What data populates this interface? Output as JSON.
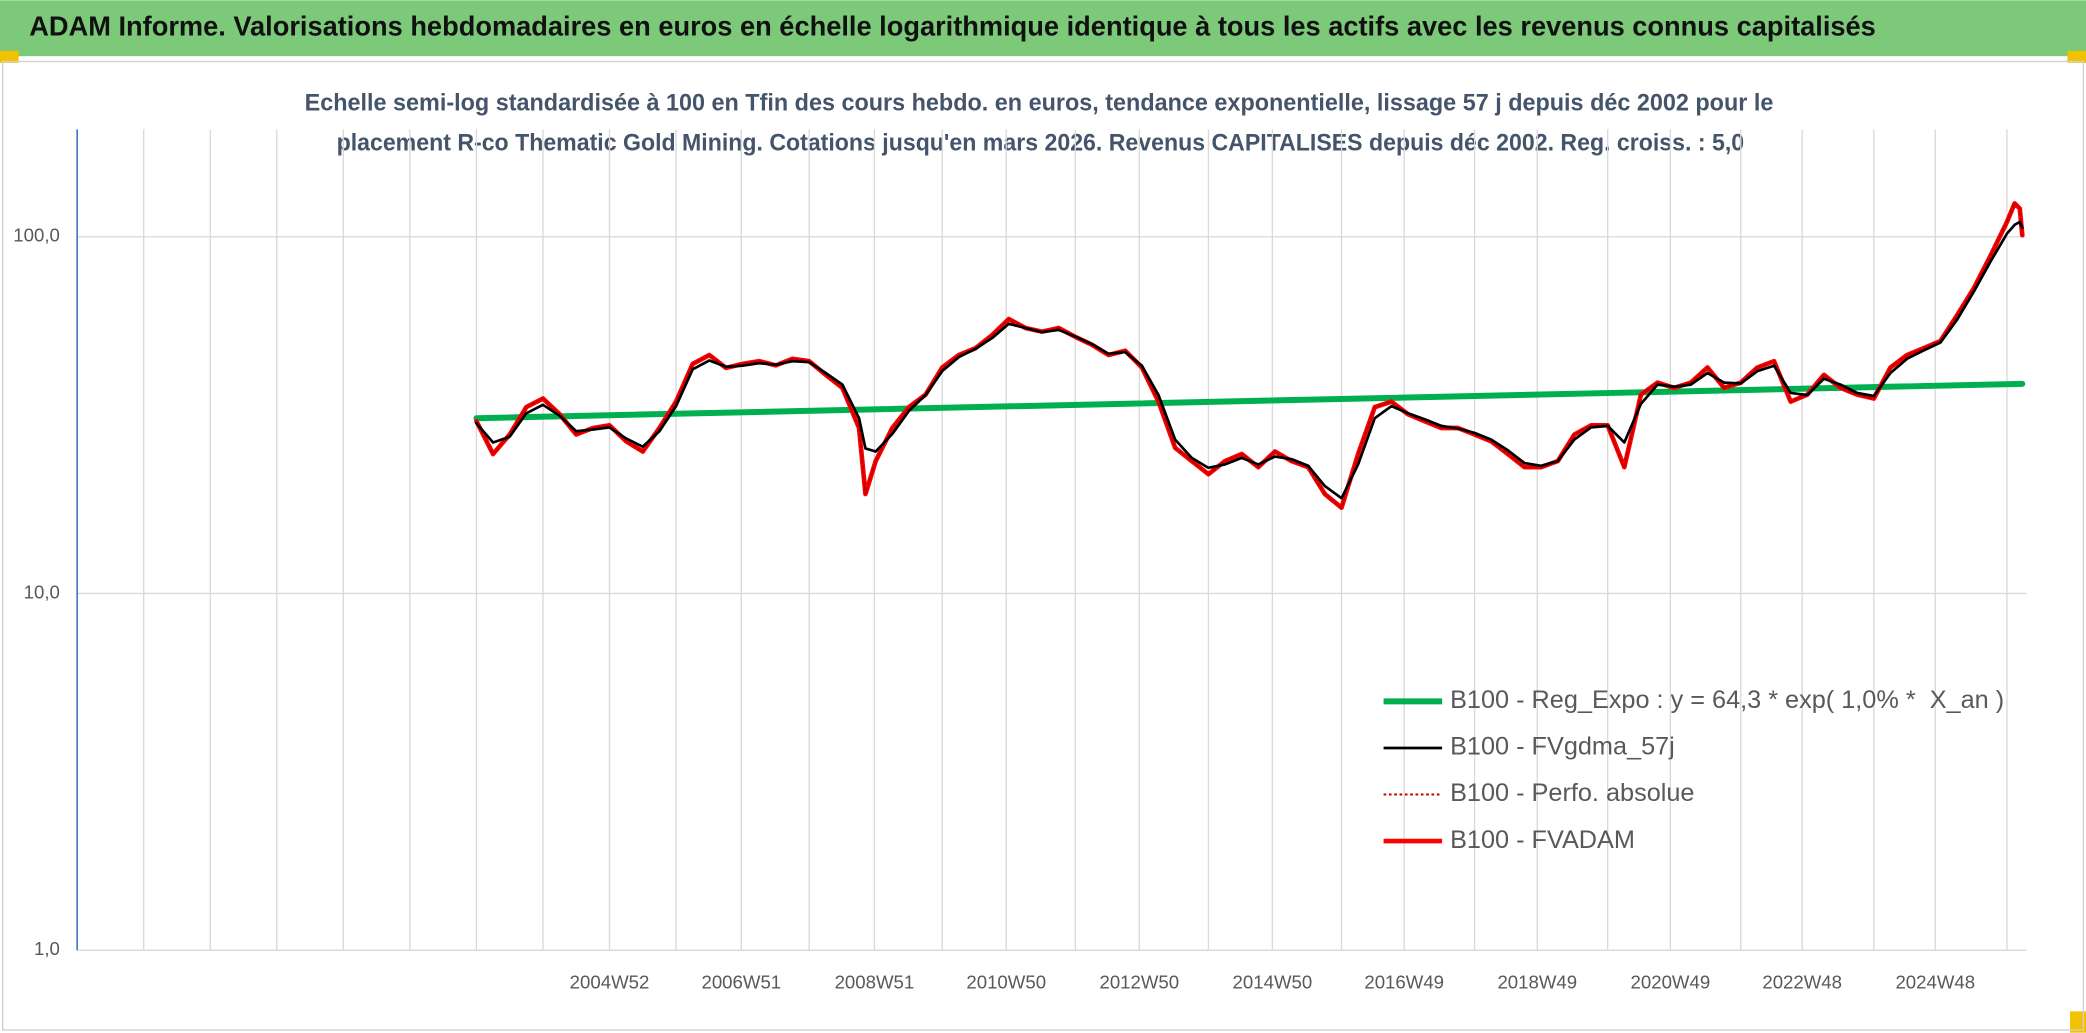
{
  "header": {
    "title": "ADAM Informe. Valorisations hebdomadaires en euros en échelle logarithmique identique à tous les actifs avec les revenus connus capitalisés"
  },
  "chart_data": {
    "type": "line",
    "subtitle": [
      "Echelle semi-log standardisée à 100 en Tfin des cours hebdo. en euros, tendance exponentielle, lissage 57 j depuis déc 2002 pour le",
      "placement R-co Thematic Gold Mining. Cotations jusqu'en mars 2026. Revenus CAPITALISES depuis déc 2002. Reg. croiss. : 5,0"
    ],
    "log_scale": true,
    "grid": true,
    "legend": "lower right",
    "ylim": [
      1,
      200
    ],
    "yticks": [
      {
        "value": 1,
        "label": "1,0"
      },
      {
        "value": 10,
        "label": "10,0"
      },
      {
        "value": 100,
        "label": "100,0"
      }
    ],
    "xlim": [
      "1996W52",
      "2026W15"
    ],
    "xticks": [
      "2004W52",
      "2006W51",
      "2008W51",
      "2010W50",
      "2012W50",
      "2014W50",
      "2016W49",
      "2018W49",
      "2020W49",
      "2022W48",
      "2024W48"
    ],
    "x_grid": [
      "1997W52",
      "1998W52",
      "1999W52",
      "2000W52",
      "2001W52",
      "2002W52",
      "2003W52",
      "2005W52",
      "2007W52",
      "2009W52",
      "2011W52",
      "2013W52",
      "2015W52",
      "2017W52",
      "2019W52",
      "2021W52",
      "2023W52",
      "2025W52"
    ],
    "x": [
      "2002W52",
      "2003W13",
      "2003W26",
      "2003W39",
      "2003W52",
      "2004W13",
      "2004W26",
      "2004W39",
      "2004W52",
      "2005W13",
      "2005W26",
      "2005W39",
      "2005W52",
      "2006W13",
      "2006W26",
      "2006W39",
      "2006W52",
      "2007W13",
      "2007W26",
      "2007W39",
      "2007W52",
      "2008W13",
      "2008W26",
      "2008W39",
      "2008W44",
      "2008W52",
      "2009W13",
      "2009W26",
      "2009W39",
      "2009W52",
      "2010W13",
      "2010W26",
      "2010W39",
      "2010W52",
      "2011W13",
      "2011W26",
      "2011W39",
      "2011W52",
      "2012W13",
      "2012W26",
      "2012W39",
      "2012W52",
      "2013W13",
      "2013W26",
      "2013W39",
      "2013W52",
      "2014W13",
      "2014W26",
      "2014W39",
      "2014W52",
      "2015W13",
      "2015W26",
      "2015W39",
      "2015W52",
      "2016W13",
      "2016W26",
      "2016W39",
      "2016W52",
      "2017W13",
      "2017W26",
      "2017W39",
      "2017W52",
      "2018W13",
      "2018W26",
      "2018W39",
      "2018W52",
      "2019W13",
      "2019W26",
      "2019W39",
      "2019W52",
      "2020W13",
      "2020W26",
      "2020W39",
      "2020W52",
      "2021W13",
      "2021W26",
      "2021W39",
      "2021W52",
      "2022W13",
      "2022W26",
      "2022W39",
      "2022W52",
      "2023W13",
      "2023W26",
      "2023W39",
      "2023W52",
      "2024W13",
      "2024W26",
      "2024W39",
      "2024W52",
      "2025W13",
      "2025W26",
      "2025W39",
      "2025W52",
      "2026W06",
      "2026W10",
      "2026W12"
    ],
    "series": [
      {
        "name": "B100 - Reg_Expo : y = 64,3 * exp( 1,0% *  X_an )",
        "color": "#00b050",
        "style": "thick",
        "x": [
          "2002W52",
          "2026W12"
        ],
        "values": [
          31.0,
          38.7
        ]
      },
      {
        "name": "B100 - FVgdma_57j",
        "color": "#000000",
        "style": "thin",
        "values": [
          30.0,
          26.5,
          27.5,
          32.0,
          33.8,
          31.5,
          28.5,
          28.8,
          29.2,
          27.2,
          25.8,
          28.5,
          33.5,
          42.5,
          45.0,
          43.2,
          43.5,
          44.2,
          43.8,
          44.8,
          44.5,
          41.5,
          38.5,
          31.0,
          25.5,
          25.0,
          28.0,
          32.5,
          36.0,
          42.0,
          46.0,
          48.5,
          52.0,
          57.0,
          55.5,
          54.0,
          54.8,
          52.5,
          50.0,
          47.0,
          47.5,
          43.5,
          36.0,
          27.0,
          24.0,
          22.5,
          23.0,
          24.0,
          23.0,
          24.2,
          23.8,
          22.8,
          20.0,
          18.5,
          23.0,
          31.0,
          33.5,
          32.0,
          30.8,
          29.5,
          29.0,
          28.2,
          27.0,
          25.2,
          23.2,
          22.8,
          23.5,
          27.0,
          29.2,
          29.5,
          26.5,
          34.0,
          38.5,
          38.0,
          38.5,
          41.5,
          39.0,
          38.8,
          42.0,
          43.5,
          36.5,
          36.0,
          40.0,
          38.5,
          36.5,
          35.8,
          41.5,
          45.5,
          48.0,
          50.5,
          58.5,
          70.0,
          85.0,
          102,
          108,
          110,
          106
        ]
      },
      {
        "name": "B100 - Perfo. absolue",
        "color": "#c00000",
        "style": "dotted",
        "values": [
          30.4,
          24.6,
          27.9,
          33.3,
          35.2,
          31.8,
          27.9,
          29.1,
          29.6,
          26.7,
          25.0,
          29.1,
          34.5,
          44.0,
          46.6,
          42.9,
          44.0,
          44.8,
          43.6,
          45.5,
          44.8,
          41.0,
          37.7,
          29.1,
          19.0,
          23.5,
          29.1,
          33.3,
          36.1,
          43.0,
          46.6,
          48.7,
          53.0,
          58.8,
          55.5,
          54.2,
          55.5,
          52.4,
          49.8,
          46.6,
          47.9,
          43.0,
          34.5,
          25.6,
          23.5,
          21.6,
          23.5,
          24.6,
          22.6,
          25.0,
          23.5,
          22.6,
          19.0,
          17.4,
          24.6,
          33.3,
          34.5,
          31.8,
          30.4,
          29.1,
          29.1,
          27.9,
          26.7,
          24.6,
          22.6,
          22.6,
          23.5,
          27.9,
          29.6,
          29.6,
          22.6,
          36.1,
          39.0,
          37.7,
          39.0,
          43.0,
          37.7,
          39.0,
          43.0,
          44.8,
          34.5,
          36.1,
          41.0,
          37.7,
          36.1,
          35.2,
          43.0,
          46.6,
          48.7,
          51.0,
          60.2,
          71.6,
          88.2,
          110,
          124,
          120,
          101
        ]
      },
      {
        "name": "B100 - FVADAM",
        "color": "#ff0000",
        "style": "medium",
        "values": [
          30.4,
          24.6,
          27.9,
          33.3,
          35.2,
          31.8,
          27.9,
          29.1,
          29.6,
          26.7,
          25.0,
          29.1,
          34.5,
          44.0,
          46.6,
          42.9,
          44.0,
          44.8,
          43.6,
          45.5,
          44.8,
          41.0,
          37.7,
          29.1,
          19.0,
          23.5,
          29.1,
          33.3,
          36.1,
          43.0,
          46.6,
          48.7,
          53.0,
          58.8,
          55.5,
          54.2,
          55.5,
          52.4,
          49.8,
          46.6,
          47.9,
          43.0,
          34.5,
          25.6,
          23.5,
          21.6,
          23.5,
          24.6,
          22.6,
          25.0,
          23.5,
          22.6,
          19.0,
          17.4,
          24.6,
          33.3,
          34.5,
          31.8,
          30.4,
          29.1,
          29.1,
          27.9,
          26.7,
          24.6,
          22.6,
          22.6,
          23.5,
          27.9,
          29.6,
          29.6,
          22.6,
          36.1,
          39.0,
          37.7,
          39.0,
          43.0,
          37.7,
          39.0,
          43.0,
          44.8,
          34.5,
          36.1,
          41.0,
          37.7,
          36.1,
          35.2,
          43.0,
          46.6,
          48.7,
          51.0,
          60.2,
          71.6,
          88.2,
          110,
          124,
          120,
          101
        ]
      }
    ]
  }
}
